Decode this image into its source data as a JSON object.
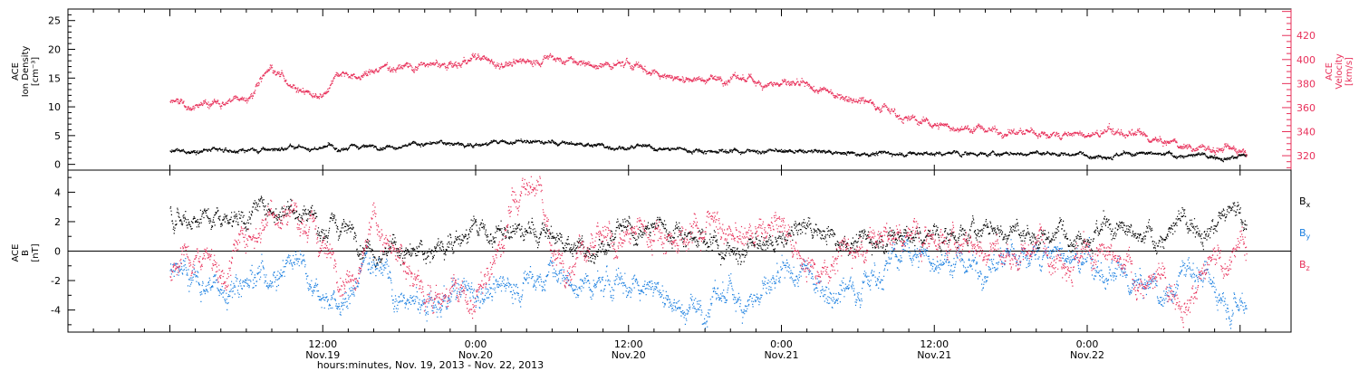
{
  "chart_data": [
    {
      "type": "scatter",
      "panel": "plasma",
      "left_axis": {
        "label": [
          "ACE",
          "Ion Density",
          "[cm⁻³]"
        ],
        "ylim": [
          -1,
          27
        ],
        "ticks": [
          0,
          5,
          10,
          15,
          20,
          25
        ],
        "color": "#000000"
      },
      "right_axis": {
        "label": [
          "ACE",
          "Velocity",
          "[km/s]"
        ],
        "ylim": [
          308,
          442
        ],
        "ticks": [
          320,
          340,
          360,
          380,
          400,
          420
        ],
        "color": "#e8305a"
      },
      "series": [
        {
          "axis": "left",
          "color": "#000000",
          "keypoints": [
            [
              0,
              2.2
            ],
            [
              3,
              2.3
            ],
            [
              6,
              2.4
            ],
            [
              9,
              2.6
            ],
            [
              12,
              2.8
            ],
            [
              15,
              3.0
            ],
            [
              18,
              3.4
            ],
            [
              21,
              3.6
            ],
            [
              24,
              3.5
            ],
            [
              27,
              3.9
            ],
            [
              30,
              3.7
            ],
            [
              33,
              3.4
            ],
            [
              36,
              3.0
            ],
            [
              39,
              2.6
            ],
            [
              42,
              2.4
            ],
            [
              45,
              2.4
            ],
            [
              48,
              2.2
            ],
            [
              51,
              2.1
            ],
            [
              54,
              2.0
            ],
            [
              57,
              1.9
            ],
            [
              60,
              1.8
            ],
            [
              63,
              1.9
            ],
            [
              66,
              1.8
            ],
            [
              69,
              1.9
            ],
            [
              72,
              1.8
            ],
            [
              75,
              1.7
            ],
            [
              78,
              1.6
            ],
            [
              81,
              1.4
            ],
            [
              84,
              1.5
            ]
          ],
          "noise": 0.45
        },
        {
          "axis": "right",
          "color": "#e8305a",
          "keypoints": [
            [
              0,
              364
            ],
            [
              2,
              362
            ],
            [
              4,
              364
            ],
            [
              5.5,
              368
            ],
            [
              6.5,
              372
            ],
            [
              7,
              385
            ],
            [
              7.8,
              395
            ],
            [
              8.5,
              388
            ],
            [
              9.5,
              380
            ],
            [
              11,
              372
            ],
            [
              12,
              370
            ],
            [
              12.8,
              388
            ],
            [
              13.5,
              392
            ],
            [
              14.5,
              384
            ],
            [
              16,
              390
            ],
            [
              18,
              396
            ],
            [
              20,
              395
            ],
            [
              22,
              394
            ],
            [
              24,
              400
            ],
            [
              26,
              397
            ],
            [
              28,
              398
            ],
            [
              30,
              402
            ],
            [
              32,
              397
            ],
            [
              34,
              394
            ],
            [
              36,
              396
            ],
            [
              38,
              390
            ],
            [
              40,
              385
            ],
            [
              42,
              384
            ],
            [
              44,
              384
            ],
            [
              46,
              382
            ],
            [
              48,
              380
            ],
            [
              49,
              378
            ],
            [
              50,
              375
            ],
            [
              52,
              372
            ],
            [
              54,
              368
            ],
            [
              56,
              362
            ],
            [
              57,
              356
            ],
            [
              58,
              350
            ],
            [
              60,
              346
            ],
            [
              62,
              343
            ],
            [
              64,
              342
            ],
            [
              66,
              340
            ],
            [
              68,
              338
            ],
            [
              70,
              338
            ],
            [
              72,
              336
            ],
            [
              74,
              340
            ],
            [
              76,
              336
            ],
            [
              78,
              330
            ],
            [
              80,
              328
            ],
            [
              81,
              326
            ],
            [
              82,
              325
            ],
            [
              84,
              326
            ]
          ],
          "noise": 4
        }
      ]
    },
    {
      "type": "scatter",
      "panel": "magnetic-field",
      "left_axis": {
        "label": [
          "ACE",
          "B",
          "[nT]"
        ],
        "ylim": [
          -5.5,
          5.5
        ],
        "ticks": [
          -4,
          -2,
          0,
          2,
          4
        ],
        "color": "#000000"
      },
      "zero_line": true,
      "series": [
        {
          "name": "Bx",
          "color": "#000000",
          "keypoints": [
            [
              0,
              2.5
            ],
            [
              3,
              2.5
            ],
            [
              6,
              2.6
            ],
            [
              8,
              3.0
            ],
            [
              10,
              3.1
            ],
            [
              11,
              2.8
            ],
            [
              12,
              1.5
            ],
            [
              14,
              1.4
            ],
            [
              16,
              0.5
            ],
            [
              18,
              0
            ],
            [
              20,
              -0.5
            ],
            [
              22,
              1.0
            ],
            [
              24,
              1.3
            ],
            [
              26,
              1.0
            ],
            [
              28,
              1.2
            ],
            [
              30,
              1.0
            ],
            [
              32,
              0.2
            ],
            [
              34,
              0.8
            ],
            [
              36,
              1.0
            ],
            [
              38,
              1.5
            ],
            [
              40,
              1.5
            ],
            [
              42,
              1.0
            ],
            [
              44,
              0
            ],
            [
              46,
              0.2
            ],
            [
              48,
              0.5
            ],
            [
              50,
              1.6
            ],
            [
              52,
              1.2
            ],
            [
              54,
              0.7
            ],
            [
              56,
              0.9
            ],
            [
              58,
              1.0
            ],
            [
              60,
              0.8
            ],
            [
              62,
              1.3
            ],
            [
              64,
              1.5
            ],
            [
              66,
              1.2
            ],
            [
              68,
              1.0
            ],
            [
              70,
              1.5
            ],
            [
              72,
              1.8
            ],
            [
              74,
              1.3
            ],
            [
              76,
              0.5
            ],
            [
              78,
              1.0
            ],
            [
              80,
              2.0
            ],
            [
              82,
              2.2
            ],
            [
              84,
              2.4
            ]
          ],
          "noise": 0.9
        },
        {
          "name": "By",
          "color": "#1a7fe0",
          "keypoints": [
            [
              0,
              -1.0
            ],
            [
              2,
              -2.0
            ],
            [
              4,
              -2.5
            ],
            [
              6,
              -1.5
            ],
            [
              8,
              -1.5
            ],
            [
              10,
              0
            ],
            [
              12,
              -2.5
            ],
            [
              13,
              -3.8
            ],
            [
              14,
              -3.5
            ],
            [
              15,
              -1.5
            ],
            [
              16,
              0
            ],
            [
              17,
              -1
            ],
            [
              18,
              -3.5
            ],
            [
              20,
              -4.0
            ],
            [
              22,
              -3.5
            ],
            [
              24,
              -2.5
            ],
            [
              26,
              -2.5
            ],
            [
              28,
              -2.0
            ],
            [
              30,
              -1.5
            ],
            [
              32,
              -2.5
            ],
            [
              34,
              -2.5
            ],
            [
              36,
              -2.0
            ],
            [
              38,
              -2.0
            ],
            [
              40,
              -3.8
            ],
            [
              42,
              -3.8
            ],
            [
              44,
              -3.0
            ],
            [
              46,
              -3.0
            ],
            [
              48,
              -2.5
            ],
            [
              50,
              -1.5
            ],
            [
              52,
              -2.5
            ],
            [
              54,
              -2.0
            ],
            [
              55,
              -1.5
            ],
            [
              56,
              -1.0
            ],
            [
              58,
              0
            ],
            [
              60,
              -0.5
            ],
            [
              62,
              -0.8
            ],
            [
              64,
              -1.0
            ],
            [
              66,
              -0.5
            ],
            [
              68,
              0
            ],
            [
              70,
              -0.5
            ],
            [
              72,
              -1.0
            ],
            [
              74,
              -2.0
            ],
            [
              76,
              -2.5
            ],
            [
              78,
              -3.0
            ],
            [
              80,
              -1.0
            ],
            [
              82,
              -2.5
            ],
            [
              84,
              -3.0
            ]
          ],
          "noise": 1.1
        },
        {
          "name": "Bz",
          "color": "#e8305a",
          "keypoints": [
            [
              0,
              -1.5
            ],
            [
              1,
              0
            ],
            [
              2,
              -0.5
            ],
            [
              3,
              0.5
            ],
            [
              4,
              -1.5
            ],
            [
              6,
              1.0
            ],
            [
              8,
              3.0
            ],
            [
              10,
              2.8
            ],
            [
              12,
              0
            ],
            [
              14,
              -1.5
            ],
            [
              16,
              2.0
            ],
            [
              18,
              -1.0
            ],
            [
              20,
              -2.5
            ],
            [
              22,
              -3.0
            ],
            [
              24,
              -3.5
            ],
            [
              26,
              0
            ],
            [
              27,
              3.5
            ],
            [
              28,
              4.0
            ],
            [
              29,
              4.5
            ],
            [
              30,
              0
            ],
            [
              31,
              -1.5
            ],
            [
              32,
              1.0
            ],
            [
              34,
              0
            ],
            [
              36,
              1.0
            ],
            [
              38,
              1.5
            ],
            [
              40,
              1.0
            ],
            [
              42,
              2.0
            ],
            [
              43,
              2.5
            ],
            [
              44,
              0.5
            ],
            [
              46,
              1.0
            ],
            [
              48,
              1.5
            ],
            [
              50,
              -1.0
            ],
            [
              52,
              -0.5
            ],
            [
              54,
              0.5
            ],
            [
              56,
              1.0
            ],
            [
              58,
              0.8
            ],
            [
              60,
              1.0
            ],
            [
              62,
              0.5
            ],
            [
              64,
              0
            ],
            [
              66,
              -0.5
            ],
            [
              68,
              0.8
            ],
            [
              70,
              0.5
            ],
            [
              72,
              -0.5
            ],
            [
              74,
              -1.0
            ],
            [
              76,
              -2.0
            ],
            [
              78,
              -2.5
            ],
            [
              80,
              -2.5
            ],
            [
              82,
              -1.0
            ],
            [
              84,
              0.5
            ]
          ],
          "noise": 1.2
        }
      ],
      "legend": [
        {
          "label": "B",
          "sub": "x",
          "color": "#000000"
        },
        {
          "label": "B",
          "sub": "y",
          "color": "#1a7fe0"
        },
        {
          "label": "B",
          "sub": "z",
          "color": "#e8305a"
        }
      ]
    }
  ],
  "x_axis": {
    "range_hours": [
      -8,
      88
    ],
    "data_end_hours": 84.5,
    "ticks": [
      {
        "hour": 12,
        "time": "12:00",
        "date": "Nov.19"
      },
      {
        "hour": 24,
        "time": "0:00",
        "date": "Nov.20"
      },
      {
        "hour": 36,
        "time": "12:00",
        "date": "Nov.20"
      },
      {
        "hour": 48,
        "time": "0:00",
        "date": "Nov.21"
      },
      {
        "hour": 60,
        "time": "12:00",
        "date": "Nov.21"
      },
      {
        "hour": 72,
        "time": "0:00",
        "date": "Nov.22"
      }
    ],
    "title": "hours:minutes, Nov. 19, 2013 - Nov. 22, 2013"
  }
}
